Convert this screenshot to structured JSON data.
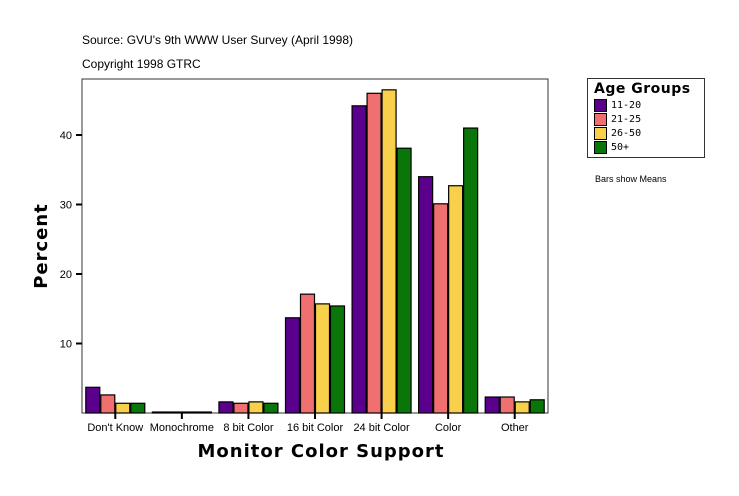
{
  "header": {
    "source": "Source: GVU's 9th WWW User Survey (April 1998)",
    "copyright": "Copyright 1998 GTRC"
  },
  "legend": {
    "title": "Age Groups",
    "items": [
      {
        "label": "11-20",
        "color": "#5a008c"
      },
      {
        "label": "21-25",
        "color": "#f07070"
      },
      {
        "label": "26-50",
        "color": "#f8d04c"
      },
      {
        "label": "50+",
        "color": "#0a760a"
      }
    ]
  },
  "note": "Bars show Means",
  "chart_data": {
    "type": "bar",
    "title": "",
    "xlabel": "Monitor Color Support",
    "ylabel": "Percent",
    "ylim": [
      0,
      48
    ],
    "yticks": [
      10,
      20,
      30,
      40
    ],
    "grid": false,
    "legend_position": "right",
    "legend_title": "Age Groups",
    "categories": [
      "Don't Know",
      "Monochrome",
      "8 bit Color",
      "16 bit Color",
      "24 bit Color",
      "Color",
      "Other"
    ],
    "series": [
      {
        "name": "11-20",
        "color": "#5a008c",
        "values": [
          3.7,
          0.1,
          1.6,
          13.7,
          44.2,
          34.0,
          2.3
        ]
      },
      {
        "name": "21-25",
        "color": "#f07070",
        "values": [
          2.6,
          0.0,
          1.4,
          17.1,
          46.0,
          30.1,
          2.3
        ]
      },
      {
        "name": "26-50",
        "color": "#f8d04c",
        "values": [
          1.4,
          0.1,
          1.6,
          15.7,
          46.5,
          32.7,
          1.6
        ]
      },
      {
        "name": "50+",
        "color": "#0a760a",
        "values": [
          1.4,
          0.1,
          1.4,
          15.4,
          38.1,
          41.0,
          1.9
        ]
      }
    ]
  }
}
